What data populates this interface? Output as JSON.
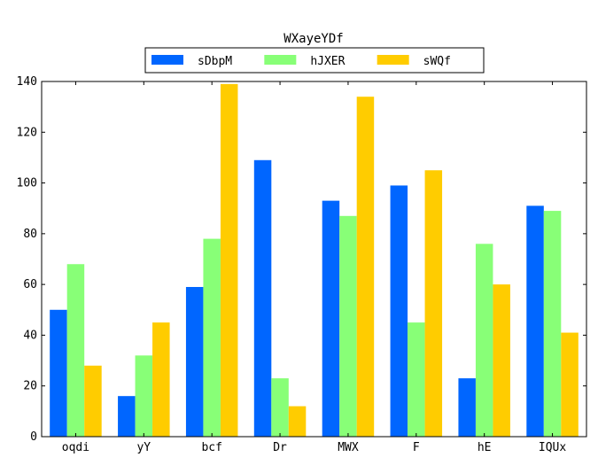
{
  "chart_data": {
    "type": "bar",
    "title": "WXayeYDf",
    "xlabel": "",
    "ylabel": "",
    "categories": [
      "oqdi",
      "yY",
      "bcf",
      "Dr",
      "MWX",
      "F",
      "hE",
      "IQUx"
    ],
    "series": [
      {
        "name": "sDbpM",
        "color": "#0066ff",
        "values": [
          50,
          16,
          59,
          109,
          93,
          99,
          23,
          91
        ]
      },
      {
        "name": "hJXER",
        "color": "#88ff77",
        "values": [
          68,
          32,
          78,
          23,
          87,
          45,
          76,
          89
        ]
      },
      {
        "name": "sWQf",
        "color": "#ffcc00",
        "values": [
          28,
          45,
          139,
          12,
          134,
          105,
          60,
          41
        ]
      }
    ],
    "ylim": [
      0,
      140
    ],
    "yticks": [
      0,
      20,
      40,
      60,
      80,
      100,
      120,
      140
    ],
    "grid": false,
    "legend_position": "top-center"
  }
}
